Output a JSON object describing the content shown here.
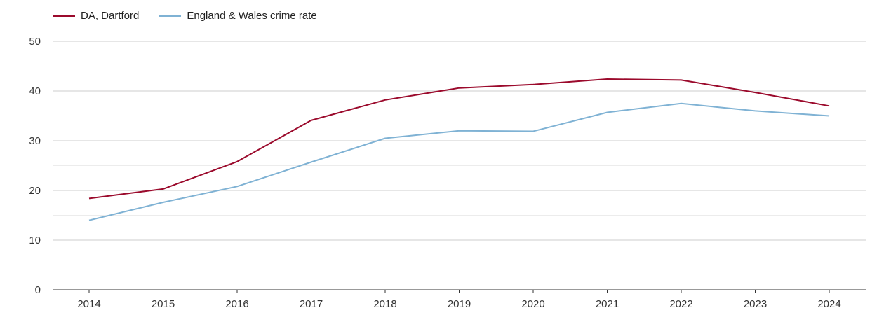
{
  "chart_data": {
    "type": "line",
    "categories": [
      "2014",
      "2015",
      "2016",
      "2017",
      "2018",
      "2019",
      "2020",
      "2021",
      "2022",
      "2023",
      "2024"
    ],
    "series": [
      {
        "name": "DA, Dartford",
        "color": "#9b0a2c",
        "values": [
          18.4,
          20.3,
          25.8,
          34.1,
          38.2,
          40.6,
          41.3,
          42.4,
          42.2,
          39.7,
          37.0
        ]
      },
      {
        "name": "England & Wales crime rate",
        "color": "#7fb2d4",
        "values": [
          14.0,
          17.6,
          20.8,
          25.7,
          30.5,
          32.0,
          31.9,
          35.7,
          37.5,
          36.0,
          35.0
        ]
      }
    ],
    "y_ticks": [
      "0",
      "10",
      "20",
      "30",
      "40",
      "50"
    ],
    "ylim": [
      0,
      50
    ],
    "grid": true,
    "legend_position": "top-left"
  }
}
